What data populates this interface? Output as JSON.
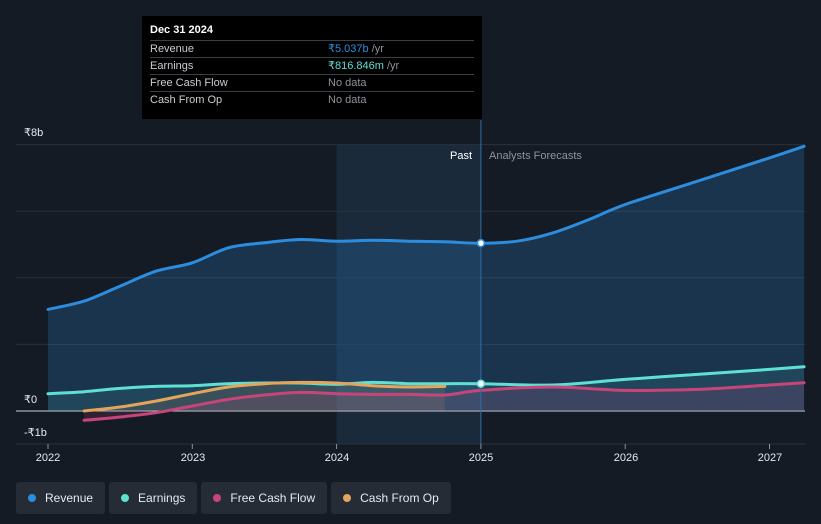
{
  "tooltip": {
    "date": "Dec 31 2024",
    "rows": [
      {
        "label": "Revenue",
        "value": "₹5.037b",
        "unit": " /yr"
      },
      {
        "label": "Earnings",
        "value": "₹816.846m",
        "unit": " /yr"
      },
      {
        "label": "Free Cash Flow",
        "value": "No data"
      },
      {
        "label": "Cash From Op",
        "value": "No data"
      }
    ]
  },
  "labels": {
    "past": "Past",
    "forecast": "Analysts Forecasts"
  },
  "legend": [
    {
      "label": "Revenue",
      "color": "#2c8ddf"
    },
    {
      "label": "Earnings",
      "color": "#5ee0d3"
    },
    {
      "label": "Free Cash Flow",
      "color": "#c8457a"
    },
    {
      "label": "Cash From Op",
      "color": "#e3a55c"
    }
  ],
  "chart_data": {
    "type": "line",
    "title": "",
    "xlabel": "",
    "ylabel": "",
    "xlim": [
      2022,
      2027.24
    ],
    "ylim": [
      -1,
      8
    ],
    "y_ticks": [
      {
        "value": 8,
        "label": "₹8b"
      },
      {
        "value": 0,
        "label": "₹0"
      },
      {
        "value": -1,
        "label": "-₹1b"
      }
    ],
    "x_ticks": [
      2022,
      2023,
      2024,
      2025,
      2026,
      2027
    ],
    "x_tick_labels": [
      "2022",
      "2023",
      "2024",
      "2025",
      "2026",
      "2027"
    ],
    "past_end": 2025.0,
    "highlight_start": 2024.0,
    "series": [
      {
        "name": "Revenue",
        "color": "#2c8ddf",
        "x": [
          2022.0,
          2022.25,
          2022.5,
          2022.75,
          2023.0,
          2023.25,
          2023.5,
          2023.75,
          2024.0,
          2024.25,
          2024.5,
          2024.75,
          2025.0,
          2025.25,
          2025.5,
          2025.75,
          2026.0,
          2026.5,
          2027.0,
          2027.24
        ],
        "values": [
          3.05,
          3.3,
          3.75,
          4.2,
          4.45,
          4.9,
          5.05,
          5.15,
          5.1,
          5.13,
          5.1,
          5.08,
          5.04,
          5.1,
          5.35,
          5.75,
          6.2,
          6.9,
          7.6,
          7.95
        ]
      },
      {
        "name": "Earnings",
        "color": "#5ee0d3",
        "x": [
          2022.0,
          2022.25,
          2022.5,
          2022.75,
          2023.0,
          2023.25,
          2023.5,
          2023.75,
          2024.0,
          2024.25,
          2024.5,
          2024.75,
          2025.0,
          2025.5,
          2026.0,
          2026.5,
          2027.0,
          2027.24
        ],
        "values": [
          0.52,
          0.58,
          0.68,
          0.74,
          0.76,
          0.82,
          0.84,
          0.84,
          0.8,
          0.86,
          0.82,
          0.82,
          0.82,
          0.78,
          0.95,
          1.1,
          1.25,
          1.33
        ]
      },
      {
        "name": "Free Cash Flow",
        "color": "#c8457a",
        "x": [
          2022.25,
          2022.5,
          2022.75,
          2023.0,
          2023.25,
          2023.5,
          2023.75,
          2024.0,
          2024.25,
          2024.5,
          2024.75,
          2025.0,
          2025.5,
          2026.0,
          2026.5,
          2027.0,
          2027.24
        ],
        "values": [
          -0.28,
          -0.18,
          -0.05,
          0.15,
          0.35,
          0.48,
          0.56,
          0.52,
          0.5,
          0.5,
          0.48,
          0.62,
          0.72,
          0.62,
          0.65,
          0.78,
          0.85
        ]
      },
      {
        "name": "Cash From Op",
        "color": "#e3a55c",
        "x": [
          2022.25,
          2022.5,
          2022.75,
          2023.0,
          2023.25,
          2023.5,
          2023.75,
          2024.0,
          2024.25,
          2024.5,
          2024.75
        ],
        "values": [
          0.0,
          0.12,
          0.3,
          0.52,
          0.72,
          0.82,
          0.86,
          0.84,
          0.76,
          0.72,
          0.74
        ]
      }
    ],
    "markers": [
      {
        "series": "Revenue",
        "x": 2025.0,
        "value": 5.04
      },
      {
        "series": "Earnings",
        "x": 2025.0,
        "value": 0.82
      }
    ]
  }
}
